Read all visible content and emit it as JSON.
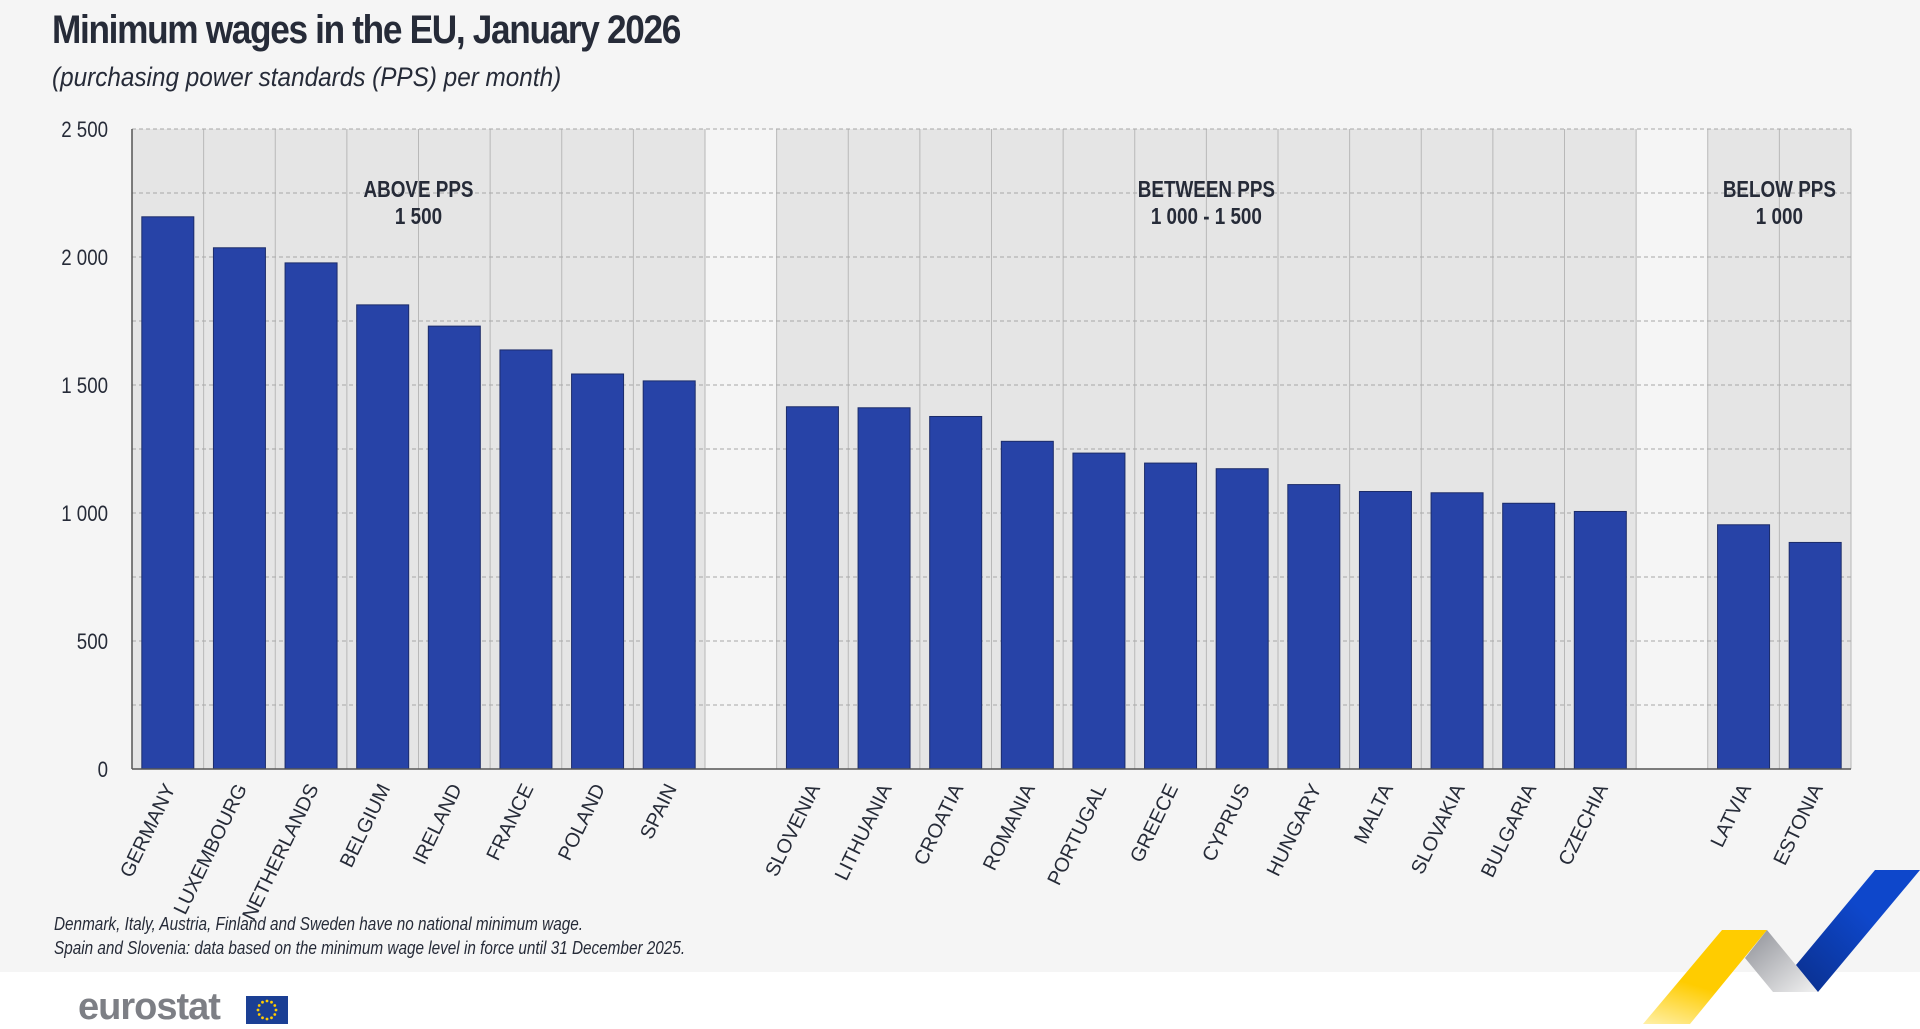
{
  "title": "Minimum wages in the EU, January 2026",
  "subtitle": "(purchasing power standards (PPS) per month)",
  "notes": [
    "Denmark, Italy, Austria, Finland and Sweden have no national minimum wage.",
    "Spain and Slovenia: data based on the minimum wage level in force until 31 December 2025."
  ],
  "logo": "eurostat",
  "colors": {
    "bar": "#2743a7",
    "band": "#e5e5e5",
    "background": "#f5f5f5",
    "yellow": "#ffcc00",
    "blue": "#0e47cb"
  },
  "chart_data": {
    "type": "bar",
    "ylim": [
      0,
      2500
    ],
    "yticks": [
      0,
      500,
      1000,
      1500,
      2000,
      2500
    ],
    "ytick_labels": [
      "0",
      "500",
      "1 000",
      "1 500",
      "2 000",
      "2 500"
    ],
    "grid": true,
    "groups": [
      {
        "label": [
          "ABOVE PPS",
          "1 500"
        ],
        "categories": [
          "GERMANY",
          "LUXEMBOURG",
          "NETHERLANDS",
          "BELGIUM",
          "IRELAND",
          "FRANCE",
          "POLAND",
          "SPAIN"
        ],
        "values": [
          2157,
          2036,
          1977,
          1813,
          1730,
          1637,
          1543,
          1516
        ]
      },
      {
        "label": [
          "BETWEEN PPS",
          "1 000 - 1 500"
        ],
        "categories": [
          "SLOVENIA",
          "LITHUANIA",
          "CROATIA",
          "ROMANIA",
          "PORTUGAL",
          "GREECE",
          "CYPRUS",
          "HUNGARY",
          "MALTA",
          "SLOVAKIA",
          "BULGARIA",
          "CZECHIA"
        ],
        "values": [
          1415,
          1411,
          1377,
          1280,
          1234,
          1195,
          1173,
          1111,
          1084,
          1079,
          1038,
          1006
        ]
      },
      {
        "label": [
          "BELOW PPS",
          "1 000"
        ],
        "categories": [
          "LATVIA",
          "ESTONIA"
        ],
        "values": [
          954,
          885
        ]
      }
    ]
  }
}
